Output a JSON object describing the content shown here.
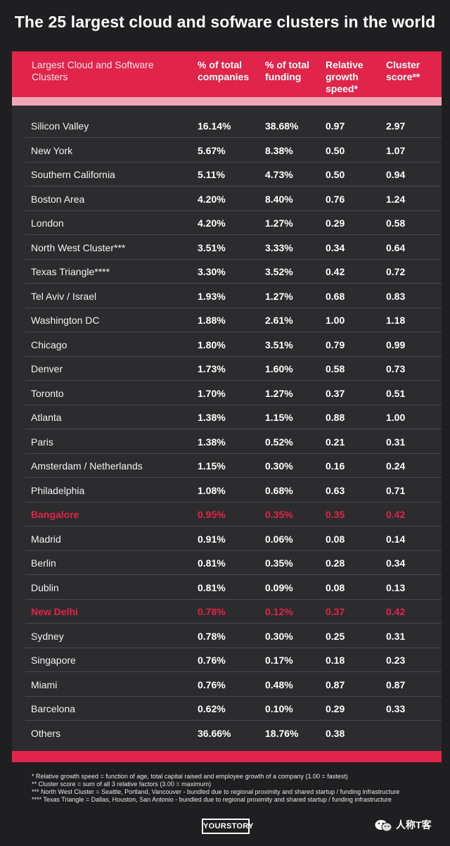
{
  "title": "The 25 largest cloud and sofware clusters in the world",
  "colors": {
    "accent": "#e0244a",
    "background": "#1f1f21",
    "panel": "#2c2c2e"
  },
  "chart_data": {
    "type": "table",
    "columns": [
      "Largest Cloud and Software Clusters",
      "% of total companies",
      "% of total funding",
      "Relative growth speed*",
      "Cluster score**"
    ],
    "rows": [
      {
        "name": "Silicon Valley",
        "companies": "16.14%",
        "funding": "38.68%",
        "growth": "0.97",
        "score": "2.97"
      },
      {
        "name": "New York",
        "companies": "5.67%",
        "funding": "8.38%",
        "growth": "0.50",
        "score": "1.07"
      },
      {
        "name": "Southern California",
        "companies": "5.11%",
        "funding": "4.73%",
        "growth": "0.50",
        "score": "0.94"
      },
      {
        "name": "Boston Area",
        "companies": "4.20%",
        "funding": "8.40%",
        "growth": "0.76",
        "score": "1.24"
      },
      {
        "name": "London",
        "companies": "4.20%",
        "funding": "1.27%",
        "growth": "0.29",
        "score": "0.58"
      },
      {
        "name": "North West Cluster***",
        "companies": "3.51%",
        "funding": "3.33%",
        "growth": "0.34",
        "score": "0.64"
      },
      {
        "name": "Texas Triangle****",
        "companies": "3.30%",
        "funding": "3.52%",
        "growth": "0.42",
        "score": "0.72"
      },
      {
        "name": "Tel Aviv / Israel",
        "companies": "1.93%",
        "funding": "1.27%",
        "growth": "0.68",
        "score": "0.83"
      },
      {
        "name": "Washington DC",
        "companies": "1.88%",
        "funding": "2.61%",
        "growth": "1.00",
        "score": "1.18"
      },
      {
        "name": "Chicago",
        "companies": "1.80%",
        "funding": "3.51%",
        "growth": "0.79",
        "score": "0.99"
      },
      {
        "name": "Denver",
        "companies": "1.73%",
        "funding": "1.60%",
        "growth": "0.58",
        "score": "0.73"
      },
      {
        "name": "Toronto",
        "companies": "1.70%",
        "funding": "1.27%",
        "growth": "0.37",
        "score": "0.51"
      },
      {
        "name": "Atlanta",
        "companies": "1.38%",
        "funding": "1.15%",
        "growth": "0.88",
        "score": "1.00"
      },
      {
        "name": "Paris",
        "companies": "1.38%",
        "funding": "0.52%",
        "growth": "0.21",
        "score": "0.31"
      },
      {
        "name": "Amsterdam / Netherlands",
        "companies": "1.15%",
        "funding": "0.30%",
        "growth": "0.16",
        "score": "0.24"
      },
      {
        "name": "Philadelphia",
        "companies": "1.08%",
        "funding": "0.68%",
        "growth": "0.63",
        "score": "0.71"
      },
      {
        "name": "Bangalore",
        "companies": "0.95%",
        "funding": "0.35%",
        "growth": "0.35",
        "score": "0.42",
        "highlight": true
      },
      {
        "name": "Madrid",
        "companies": "0.91%",
        "funding": "0.06%",
        "growth": "0.08",
        "score": "0.14"
      },
      {
        "name": "Berlin",
        "companies": "0.81%",
        "funding": "0.35%",
        "growth": "0.28",
        "score": "0.34"
      },
      {
        "name": "Dublin",
        "companies": "0.81%",
        "funding": "0.09%",
        "growth": "0.08",
        "score": "0.13"
      },
      {
        "name": "New Delhi",
        "companies": "0.78%",
        "funding": "0.12%",
        "growth": "0.37",
        "score": "0.42",
        "highlight": true
      },
      {
        "name": "Sydney",
        "companies": "0.78%",
        "funding": "0.30%",
        "growth": "0.25",
        "score": "0.31"
      },
      {
        "name": "Singapore",
        "companies": "0.76%",
        "funding": "0.17%",
        "growth": "0.18",
        "score": "0.23"
      },
      {
        "name": "Miami",
        "companies": "0.76%",
        "funding": "0.48%",
        "growth": "0.87",
        "score": "0.87"
      },
      {
        "name": "Barcelona",
        "companies": "0.62%",
        "funding": "0.10%",
        "growth": "0.29",
        "score": "0.33"
      },
      {
        "name": "Others",
        "companies": "36.66%",
        "funding": "18.76%",
        "growth": "0.38",
        "score": ""
      }
    ]
  },
  "footnotes": [
    "* Relative growth speed = function of age, total capital raised and employee growth of a company (1.00 = fastest)",
    "** Cluster score = sum of all 3 relative factors (3.00 = maximum)",
    "*** North West Cluster = Seattle, Portland, Vancouver - bundled due to regional proximity and shared startup / funding infrastructure",
    "**** Texas Triangle = Dallas, Houston, San Antonio - bundled due to regional proximity and shared startup / funding infrastructure"
  ],
  "brand": "YOURSTORY",
  "watermark": "人称T客"
}
